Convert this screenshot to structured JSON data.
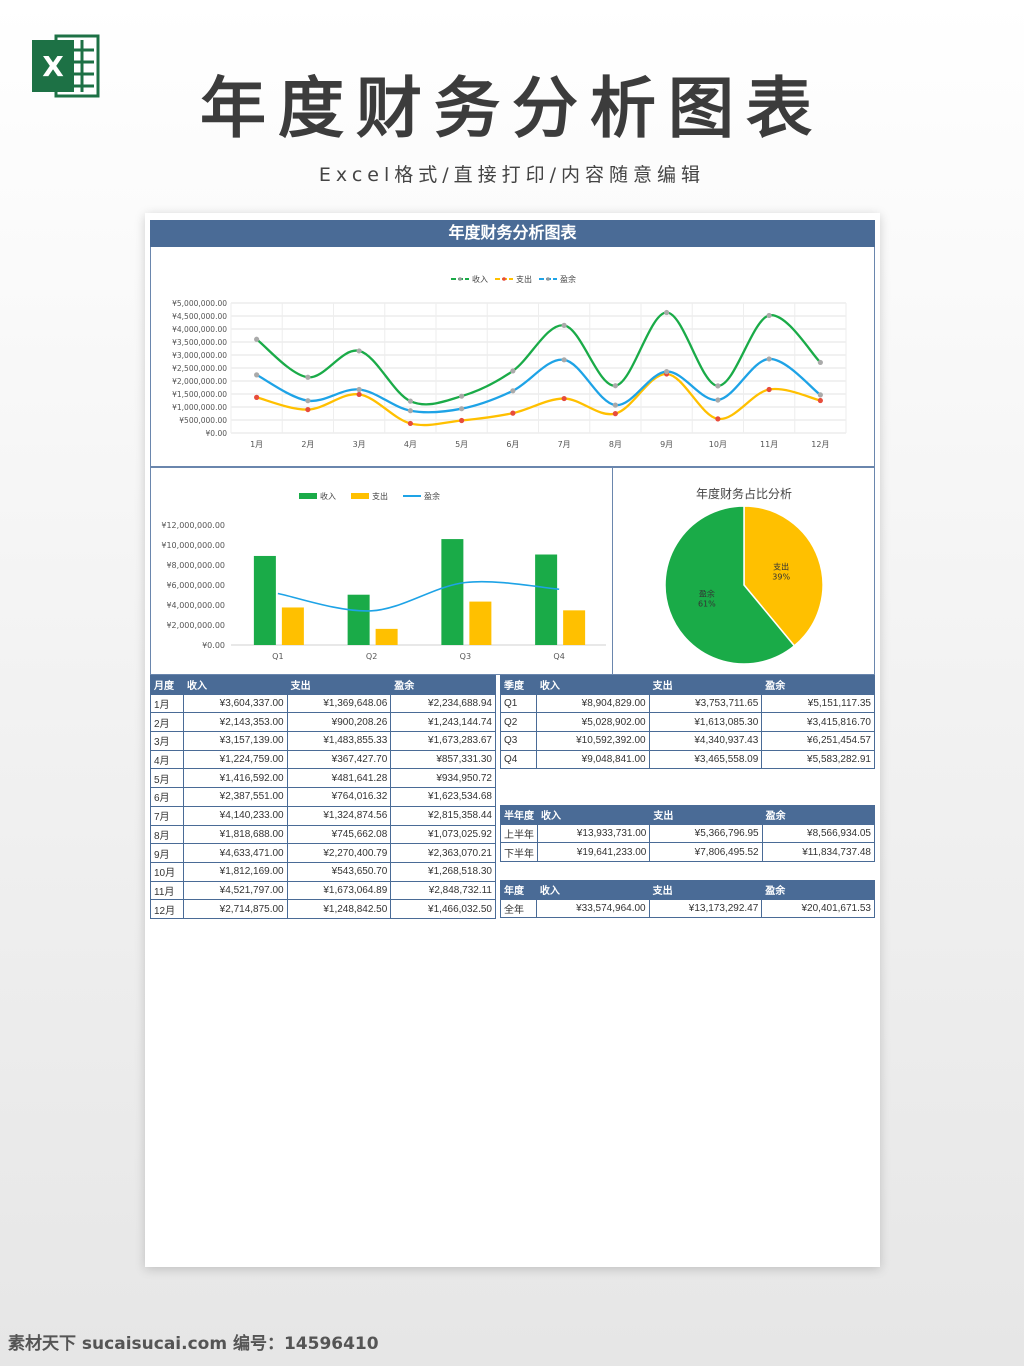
{
  "page": {
    "title": "年度财务分析图表",
    "subtitle": "Excel格式/直接打印/内容随意编辑",
    "logo_letter": "X",
    "watermark": "素材天下 sucaisucai.com   编号：14596410"
  },
  "sheet": {
    "header": "年度财务分析图表"
  },
  "colors": {
    "header": "#4a6b96",
    "income": "#1aab48",
    "expense": "#ffc000",
    "profit": "#1ea3e6"
  },
  "chart_data": [
    {
      "type": "line",
      "legend": [
        "收入",
        "支出",
        "盈余"
      ],
      "categories": [
        "1月",
        "2月",
        "3月",
        "4月",
        "5月",
        "6月",
        "7月",
        "8月",
        "9月",
        "10月",
        "11月",
        "12月"
      ],
      "series": [
        {
          "name": "收入",
          "values": [
            3604337.0,
            2143353.0,
            3157139.0,
            1224759.0,
            1416592.0,
            2387551.0,
            4140233.0,
            1818688.0,
            4633471.0,
            1812169.0,
            4521797.0,
            2714875.0
          ]
        },
        {
          "name": "支出",
          "values": [
            1369648.06,
            900208.26,
            1483855.33,
            367427.7,
            481641.28,
            764016.32,
            1324874.56,
            745662.08,
            2270400.79,
            543650.7,
            1673064.89,
            1248842.5
          ]
        },
        {
          "name": "盈余",
          "values": [
            2234688.94,
            1243144.74,
            1673283.67,
            857331.3,
            934950.72,
            1623534.68,
            2815358.44,
            1073025.92,
            2363070.21,
            1268518.3,
            2848732.11,
            1466032.5
          ]
        }
      ],
      "ylim": [
        0,
        5000000
      ],
      "yticks": [
        "¥0.00",
        "¥500,000.00",
        "¥1,000,000.00",
        "¥1,500,000.00",
        "¥2,000,000.00",
        "¥2,500,000.00",
        "¥3,000,000.00",
        "¥3,500,000.00",
        "¥4,000,000.00",
        "¥4,500,000.00",
        "¥5,000,000.00"
      ],
      "grid": true,
      "legend_position": "top"
    },
    {
      "type": "bar",
      "legend": [
        "收入",
        "支出",
        "盈余"
      ],
      "categories": [
        "Q1",
        "Q2",
        "Q3",
        "Q4"
      ],
      "series": [
        {
          "name": "收入",
          "values": [
            8904829.0,
            5028902.0,
            10592392.0,
            9048841.0
          ]
        },
        {
          "name": "支出",
          "values": [
            3753711.65,
            1613085.3,
            4340937.43,
            3465558.09
          ]
        },
        {
          "name": "盈余",
          "values": [
            5151117.35,
            3415816.7,
            6251454.57,
            5583282.91
          ],
          "render": "line"
        }
      ],
      "ylim": [
        0,
        12000000
      ],
      "yticks": [
        "¥0.00",
        "¥2,000,000.00",
        "¥4,000,000.00",
        "¥6,000,000.00",
        "¥8,000,000.00",
        "¥10,000,000.00",
        "¥12,000,000.00"
      ],
      "legend_position": "top"
    },
    {
      "type": "pie",
      "title": "年度财务占比分析",
      "slices": [
        {
          "name": "支出",
          "label": "39%",
          "value": 39
        },
        {
          "name": "盈余",
          "label": "61%",
          "value": 61
        }
      ]
    }
  ],
  "tables": {
    "monthly": {
      "headers": [
        "月度",
        "收入",
        "支出",
        "盈余"
      ],
      "rows": [
        [
          "1月",
          "¥3,604,337.00",
          "¥1,369,648.06",
          "¥2,234,688.94"
        ],
        [
          "2月",
          "¥2,143,353.00",
          "¥900,208.26",
          "¥1,243,144.74"
        ],
        [
          "3月",
          "¥3,157,139.00",
          "¥1,483,855.33",
          "¥1,673,283.67"
        ],
        [
          "4月",
          "¥1,224,759.00",
          "¥367,427.70",
          "¥857,331.30"
        ],
        [
          "5月",
          "¥1,416,592.00",
          "¥481,641.28",
          "¥934,950.72"
        ],
        [
          "6月",
          "¥2,387,551.00",
          "¥764,016.32",
          "¥1,623,534.68"
        ],
        [
          "7月",
          "¥4,140,233.00",
          "¥1,324,874.56",
          "¥2,815,358.44"
        ],
        [
          "8月",
          "¥1,818,688.00",
          "¥745,662.08",
          "¥1,073,025.92"
        ],
        [
          "9月",
          "¥4,633,471.00",
          "¥2,270,400.79",
          "¥2,363,070.21"
        ],
        [
          "10月",
          "¥1,812,169.00",
          "¥543,650.70",
          "¥1,268,518.30"
        ],
        [
          "11月",
          "¥4,521,797.00",
          "¥1,673,064.89",
          "¥2,848,732.11"
        ],
        [
          "12月",
          "¥2,714,875.00",
          "¥1,248,842.50",
          "¥1,466,032.50"
        ]
      ]
    },
    "quarterly": {
      "headers": [
        "季度",
        "收入",
        "支出",
        "盈余"
      ],
      "rows": [
        [
          "Q1",
          "¥8,904,829.00",
          "¥3,753,711.65",
          "¥5,151,117.35"
        ],
        [
          "Q2",
          "¥5,028,902.00",
          "¥1,613,085.30",
          "¥3,415,816.70"
        ],
        [
          "Q3",
          "¥10,592,392.00",
          "¥4,340,937.43",
          "¥6,251,454.57"
        ],
        [
          "Q4",
          "¥9,048,841.00",
          "¥3,465,558.09",
          "¥5,583,282.91"
        ]
      ]
    },
    "half": {
      "headers": [
        "半年度",
        "收入",
        "支出",
        "盈余"
      ],
      "rows": [
        [
          "上半年",
          "¥13,933,731.00",
          "¥5,366,796.95",
          "¥8,566,934.05"
        ],
        [
          "下半年",
          "¥19,641,233.00",
          "¥7,806,495.52",
          "¥11,834,737.48"
        ]
      ]
    },
    "year": {
      "headers": [
        "年度",
        "收入",
        "支出",
        "盈余"
      ],
      "rows": [
        [
          "全年",
          "¥33,574,964.00",
          "¥13,173,292.47",
          "¥20,401,671.53"
        ]
      ]
    }
  }
}
